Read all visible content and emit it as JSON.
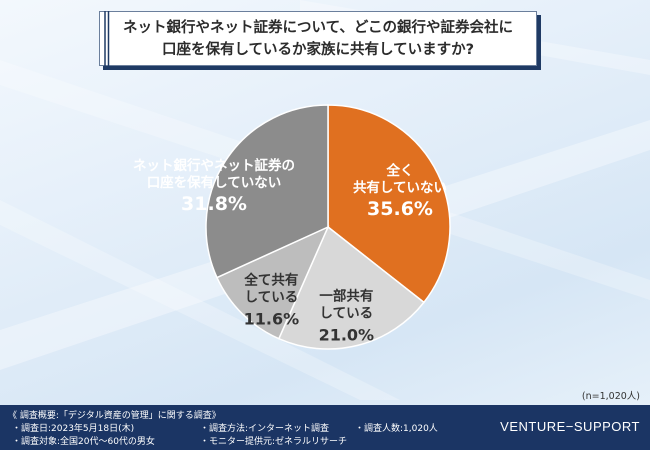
{
  "title": {
    "line1": "ネット銀行やネット証券について、どこの銀行や証券会社に",
    "line2": "口座を保有しているか家族に共有していますか?"
  },
  "chart_data": {
    "type": "pie",
    "title": "ネット銀行やネット証券について、どこの銀行や証券会社に口座を保有しているか家族に共有していますか?",
    "unit": "%",
    "slices": [
      {
        "label_lines": [
          "全く",
          "共有していない"
        ],
        "value": 35.6,
        "value_label": "35.6%",
        "color": "#e07020",
        "text_color": "#ffffff"
      },
      {
        "label_lines": [
          "一部共有",
          "している"
        ],
        "value": 21.0,
        "value_label": "21.0%",
        "color": "#d8d8d8",
        "text_color": "#333333"
      },
      {
        "label_lines": [
          "全て共有",
          "している"
        ],
        "value": 11.6,
        "value_label": "11.6%",
        "color": "#bdbdbd",
        "text_color": "#333333"
      },
      {
        "label_lines": [
          "ネット銀行やネット証券の",
          "口座を保有していない"
        ],
        "value": 31.8,
        "value_label": "31.8%",
        "color": "#8c8c8c",
        "text_color": "#ffffff"
      }
    ]
  },
  "sample_size": "(n=1,020人)",
  "footer": {
    "heading": "《 調査概要:「デジタル資産の管理」に関する調査》",
    "items": [
      "・調査日:2023年5月18日(木)",
      "・調査方法:インターネット調査",
      "・調査人数:1,020人",
      "・調査対象:全国20代〜60代の男女",
      "・モニター提供元:ゼネラルリサーチ"
    ],
    "brand": "VENTURE−SUPPORT"
  },
  "colors": {
    "footer_bg": "#1b3564",
    "accent": "#e07020"
  }
}
